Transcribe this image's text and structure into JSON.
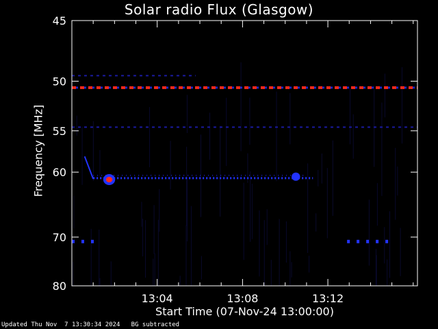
{
  "chart_data": {
    "type": "heatmap",
    "title": "Solar radio Flux (Glasgow)",
    "xlabel": "Start Time (07-Nov-24 13:00:00)",
    "ylabel": "Frequency [MHz]",
    "x_unit": "minutes after 13:00:00",
    "xlim": [
      0,
      16.2
    ],
    "ylim": [
      45,
      80
    ],
    "y_scale": "reciprocal",
    "yticks": [
      45,
      50,
      55,
      60,
      70,
      80
    ],
    "ytick_labels": [
      "45",
      "50",
      "55",
      "60",
      "70",
      "80"
    ],
    "xticks": [
      4,
      8,
      12
    ],
    "xtick_labels": [
      "13:04",
      "13:08",
      "13:12"
    ],
    "colors": {
      "background": "#000000",
      "weak": "#1a1aa0",
      "medium": "#2233ff",
      "strong": "#ff2a1a"
    },
    "features": [
      {
        "name": "continuous emission",
        "freq_mhz": 50.6,
        "t_start": 0.0,
        "t_end": 16.2,
        "level": "strong"
      },
      {
        "name": "faint line",
        "freq_mhz": 49.5,
        "t_start": 0.0,
        "t_end": 5.8,
        "level": "weak"
      },
      {
        "name": "faint line",
        "freq_mhz": 54.6,
        "t_start": 0.0,
        "t_end": 16.2,
        "level": "weak"
      },
      {
        "name": "band",
        "freq_mhz": 60.8,
        "t_start": 1.0,
        "t_end": 11.3,
        "level": "medium"
      },
      {
        "name": "drift",
        "freq_mhz_start": 58.0,
        "freq_mhz_end": 60.9,
        "t_start": 0.6,
        "t_end": 1.0,
        "level": "medium"
      },
      {
        "name": "burst",
        "freq_mhz": 61.0,
        "t_start": 1.6,
        "t_end": 1.9,
        "level": "strong"
      },
      {
        "name": "blob",
        "freq_mhz": 60.6,
        "t_start": 10.3,
        "t_end": 10.7,
        "level": "medium"
      },
      {
        "name": "spots",
        "freq_mhz": 70.8,
        "t_start": 0.0,
        "t_end": 1.2,
        "level": "medium"
      },
      {
        "name": "spots",
        "freq_mhz": 70.8,
        "t_start": 12.9,
        "t_end": 14.9,
        "level": "medium"
      }
    ]
  },
  "footer": "Updated Thu Nov  7 13:30:34 2024   BG subtracted"
}
